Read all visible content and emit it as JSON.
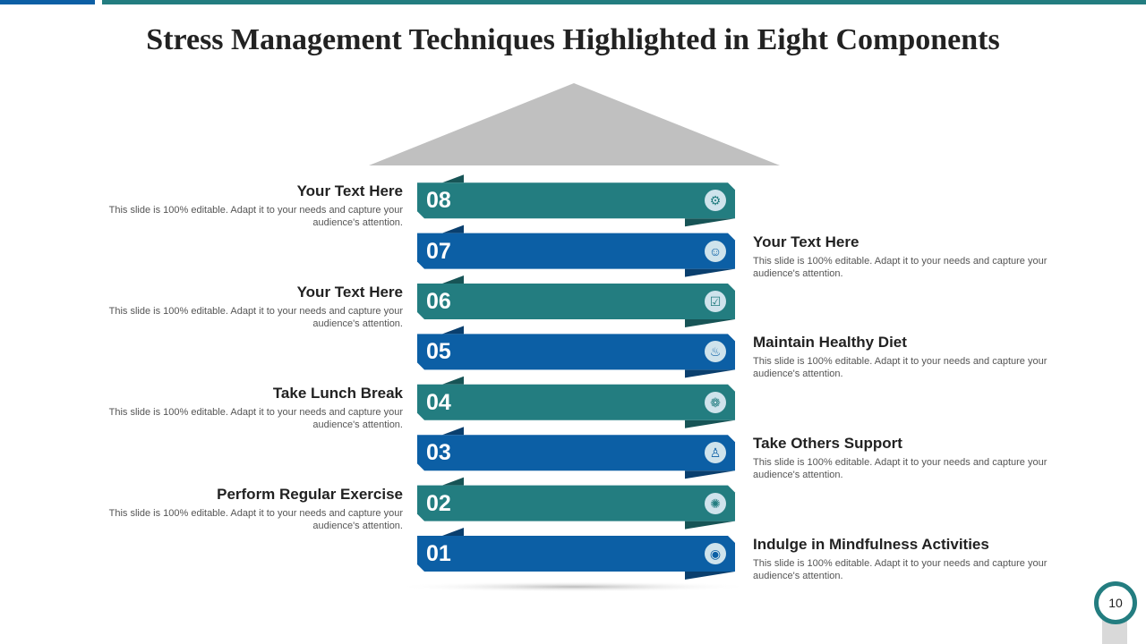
{
  "title": "Stress Management Techniques Highlighted in Eight Components",
  "colors": {
    "teal": "#237d80",
    "blue": "#0c5fa5",
    "roof": "#c0c0c0"
  },
  "steps": [
    {
      "num": "01",
      "icon": "mindfulness-person-icon",
      "side": "right",
      "title": "Indulge in Mindfulness Activities",
      "desc": "This slide is 100% editable. Adapt it to your needs and capture your audience's attention."
    },
    {
      "num": "02",
      "icon": "idea-head-icon",
      "side": "left",
      "title": "Perform Regular Exercise",
      "desc": "This slide is 100% editable. Adapt it to your needs and capture your audience's attention."
    },
    {
      "num": "03",
      "icon": "person-standing-icon",
      "side": "right",
      "title": "Take Others Support",
      "desc": "This slide is 100% editable. Adapt it to your needs and capture your audience's attention."
    },
    {
      "num": "04",
      "icon": "hands-brain-icon",
      "side": "left",
      "title": "Take Lunch Break",
      "desc": "This slide is 100% editable. Adapt it to your needs and capture your audience's attention."
    },
    {
      "num": "05",
      "icon": "dining-table-icon",
      "side": "right",
      "title": "Maintain Healthy Diet",
      "desc": "This slide is 100% editable. Adapt it to your needs and capture your audience's attention."
    },
    {
      "num": "06",
      "icon": "clipboard-apple-icon",
      "side": "left",
      "title": "Your Text Here",
      "desc": "This slide is 100% editable. Adapt it to your needs and capture your audience's attention."
    },
    {
      "num": "07",
      "icon": "head-gear-icon",
      "side": "right",
      "title": "Your Text Here",
      "desc": "This slide is 100% editable. Adapt it to your needs and capture your audience's attention."
    },
    {
      "num": "08",
      "icon": "gear-code-icon",
      "side": "left",
      "title": "Your Text Here",
      "desc": "This slide is 100% editable. Adapt it to your needs and capture your audience's attention."
    }
  ],
  "page_number": "10"
}
